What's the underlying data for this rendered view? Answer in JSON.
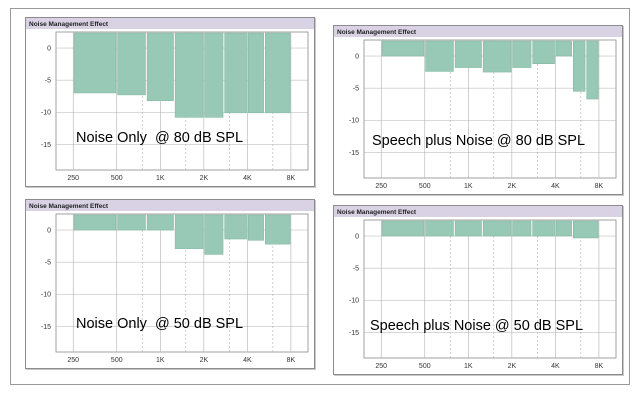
{
  "chart_data": [
    {
      "type": "bar",
      "title": "Noise Management Effect",
      "annotation": "Noise Only  @ 80 dB SPL",
      "x_ticks": [
        "250",
        "500",
        "1K",
        "2K",
        "4K",
        "8K"
      ],
      "y_ticks": [
        "0",
        "-5",
        "-10",
        "-15"
      ],
      "ylim": [
        -19,
        2.5
      ],
      "bars": [
        {
          "from": 250,
          "to": 500,
          "value": -7
        },
        {
          "from": 500,
          "to": 800,
          "value": -7.3
        },
        {
          "from": 800,
          "to": 1250,
          "value": -8.2
        },
        {
          "from": 1250,
          "to": 2000,
          "value": -10.8
        },
        {
          "from": 2000,
          "to": 2750,
          "value": -10.8
        },
        {
          "from": 2750,
          "to": 4000,
          "value": -10.1
        },
        {
          "from": 4000,
          "to": 5250,
          "value": -10.1
        },
        {
          "from": 5250,
          "to": 8000,
          "value": -10.1
        }
      ]
    },
    {
      "type": "bar",
      "title": "Noise Management Effect",
      "annotation": "Speech plus Noise @ 80 dB SPL",
      "x_ticks": [
        "250",
        "500",
        "1K",
        "2K",
        "4K",
        "8K"
      ],
      "y_ticks": [
        "0",
        "-5",
        "-10",
        "-15"
      ],
      "ylim": [
        -19,
        2.5
      ],
      "bars": [
        {
          "from": 250,
          "to": 500,
          "value": 0
        },
        {
          "from": 500,
          "to": 800,
          "value": -2.4
        },
        {
          "from": 800,
          "to": 1250,
          "value": -1.8
        },
        {
          "from": 1250,
          "to": 2000,
          "value": -2.5
        },
        {
          "from": 2000,
          "to": 2750,
          "value": -1.8
        },
        {
          "from": 2750,
          "to": 4000,
          "value": -1.2
        },
        {
          "from": 4000,
          "to": 5250,
          "value": 0
        },
        {
          "from": 5250,
          "to": 6500,
          "value": -5.5
        },
        {
          "from": 6500,
          "to": 8000,
          "value": -6.7
        }
      ]
    },
    {
      "type": "bar",
      "title": "Noise Management Effect",
      "annotation": "Noise Only  @ 50 dB SPL",
      "x_ticks": [
        "250",
        "500",
        "1K",
        "2K",
        "4K",
        "8K"
      ],
      "y_ticks": [
        "0",
        "-5",
        "-10",
        "-15"
      ],
      "ylim": [
        -19,
        2.5
      ],
      "bars": [
        {
          "from": 250,
          "to": 500,
          "value": 0
        },
        {
          "from": 500,
          "to": 800,
          "value": 0
        },
        {
          "from": 800,
          "to": 1250,
          "value": 0
        },
        {
          "from": 1250,
          "to": 2000,
          "value": -2.9
        },
        {
          "from": 2000,
          "to": 2750,
          "value": -3.8
        },
        {
          "from": 2750,
          "to": 4000,
          "value": -1.4
        },
        {
          "from": 4000,
          "to": 5250,
          "value": -1.6
        },
        {
          "from": 5250,
          "to": 8000,
          "value": -2.2
        }
      ]
    },
    {
      "type": "bar",
      "title": "Noise Management Effect",
      "annotation": "Speech plus Noise @ 50 dB SPL",
      "x_ticks": [
        "250",
        "500",
        "1K",
        "2K",
        "4K",
        "8K"
      ],
      "y_ticks": [
        "0",
        "-5",
        "-10",
        "-15"
      ],
      "ylim": [
        -19,
        2.5
      ],
      "bars": [
        {
          "from": 250,
          "to": 500,
          "value": 0
        },
        {
          "from": 500,
          "to": 800,
          "value": 0
        },
        {
          "from": 800,
          "to": 1250,
          "value": 0
        },
        {
          "from": 1250,
          "to": 2000,
          "value": 0
        },
        {
          "from": 2000,
          "to": 2750,
          "value": 0
        },
        {
          "from": 2750,
          "to": 4000,
          "value": 0
        },
        {
          "from": 4000,
          "to": 5250,
          "value": 0
        },
        {
          "from": 5250,
          "to": 8000,
          "value": -0.3
        }
      ]
    }
  ],
  "colors": {
    "title_bar": "#d9d2e4",
    "bar_fill": "#98c8b6",
    "bar_edge": "#7fb5a0",
    "grid": "#b0b0b0"
  }
}
